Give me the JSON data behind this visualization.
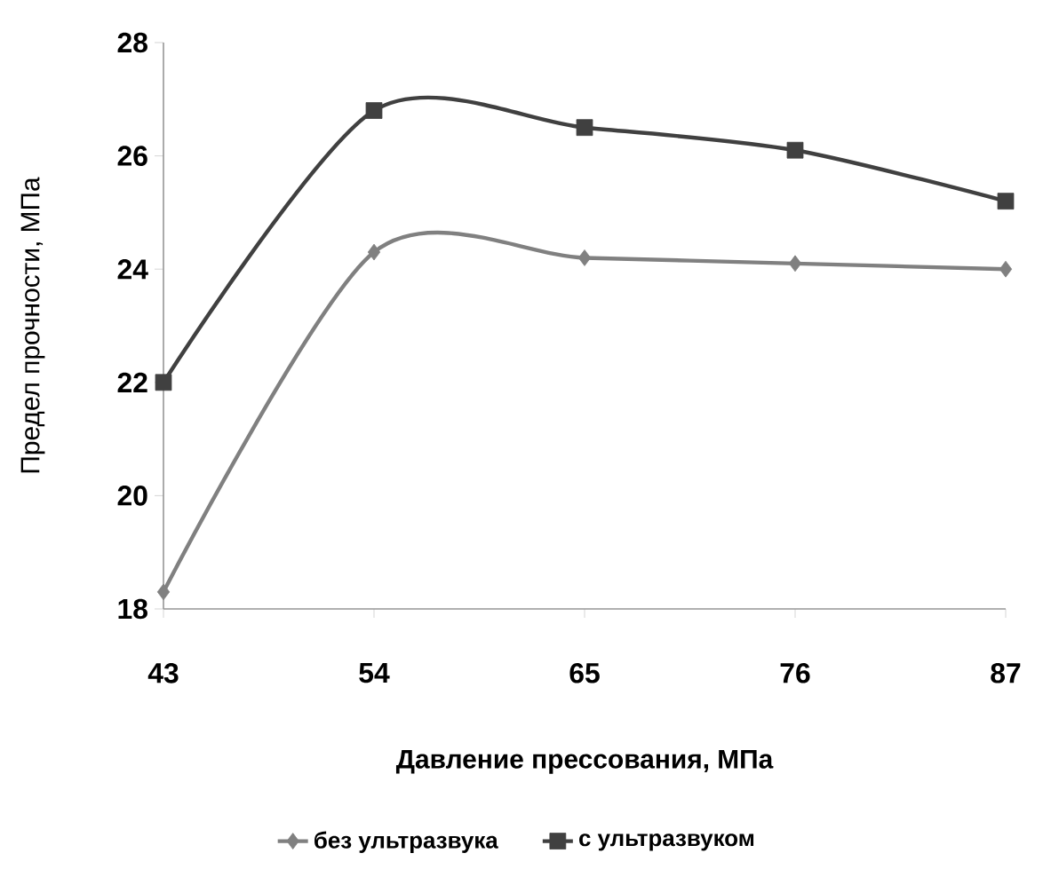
{
  "chart_data": {
    "type": "line",
    "xlabel": "Давление прессования, МПа",
    "ylabel": "Предел прочности, МПа",
    "x": [
      43,
      54,
      65,
      76,
      87
    ],
    "series": [
      {
        "name": "без ультразвука",
        "color": "#808080",
        "marker": "diamond",
        "values": [
          18.3,
          24.3,
          24.2,
          24.1,
          24.0
        ]
      },
      {
        "name": "с ультразвуком",
        "color": "#404040",
        "marker": "square",
        "values": [
          22.0,
          26.8,
          26.5,
          26.1,
          25.2
        ]
      }
    ],
    "xlim": [
      43,
      87
    ],
    "xticks": [
      43,
      54,
      65,
      76,
      87
    ],
    "ylim": [
      18,
      28
    ],
    "yticks": [
      18,
      20,
      22,
      24,
      26,
      28
    ],
    "grid": false,
    "legend": "bottom"
  }
}
